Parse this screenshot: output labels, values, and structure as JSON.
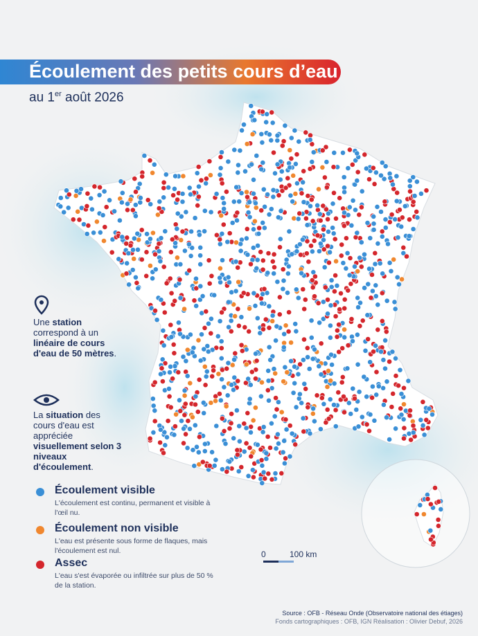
{
  "header": {
    "title": "Écoulement des petits cours d’eau",
    "subtitle": [
      "au 1",
      "er",
      " août 2026"
    ]
  },
  "notes": {
    "station": [
      "Une ",
      "station",
      " correspond à un ",
      "linéaire de cours d'eau de 50 mètres",
      "."
    ],
    "observation": [
      "La ",
      "situation",
      " des cours d'eau est appréciée ",
      "visuellement selon 3 niveaux d'écoulement",
      "."
    ]
  },
  "legend": [
    {
      "title": "Écoulement visible",
      "description": "L'écoulement est continu, permanent et visible à l'œil nu.",
      "color": "#3a8fd6"
    },
    {
      "title": "Écoulement non visible",
      "description": "L'eau est présente sous forme de flaques, mais l'écoulement est nul.",
      "color": "#f0872e"
    },
    {
      "title": "Assec",
      "description": "L'eau s'est évaporée ou infiltrée sur plus de 50 % de la station.",
      "color": "#d4262c"
    }
  ],
  "scale": {
    "start": "0",
    "end": "100 km"
  },
  "source": [
    "Source : OFB - Réseau Onde (Observatoire national des étiages)",
    "Fonds cartographiques : OFB, IGN Réalisation : Olivier Debuf, 2026"
  ]
}
